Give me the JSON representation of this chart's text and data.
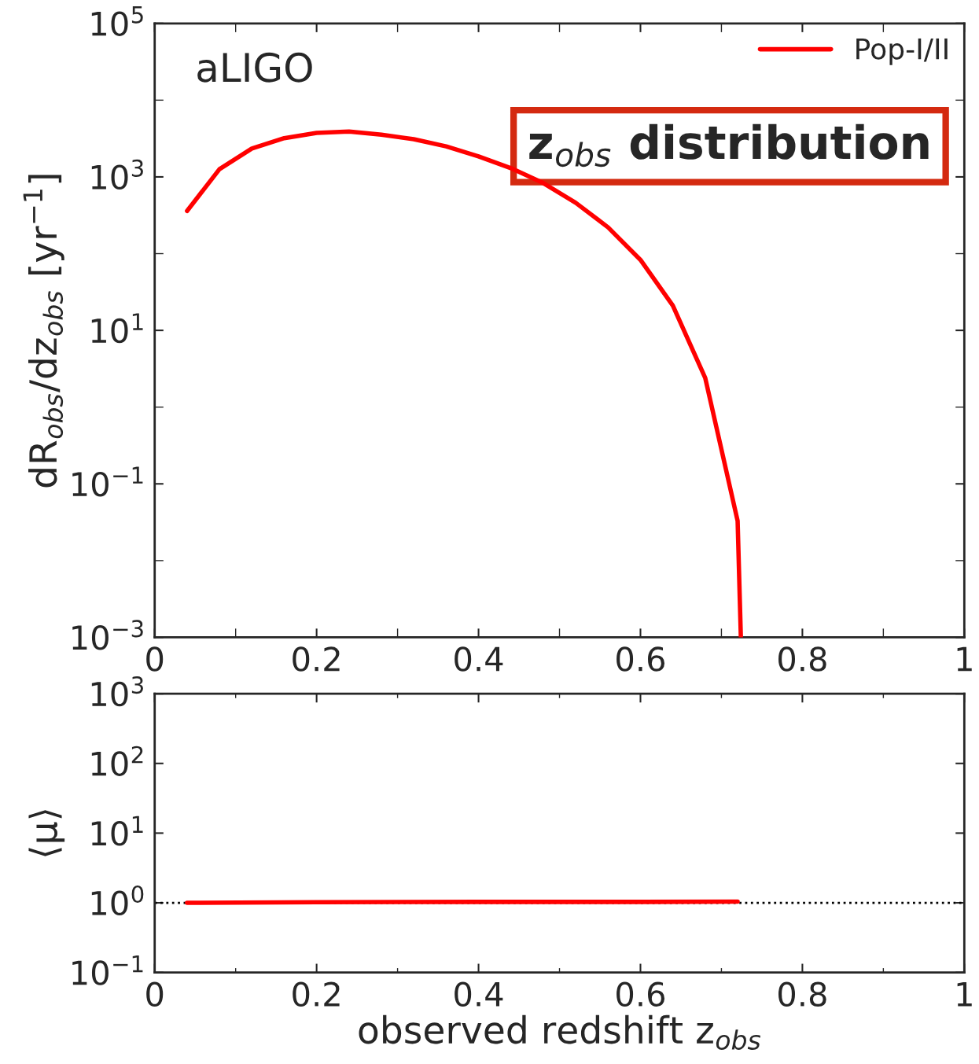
{
  "chart_data": [
    {
      "type": "line",
      "ylabel": "dR$_{obs}$/dz$_{obs}$ [yr$^{−1}$]",
      "annotations": [
        "aLIGO",
        "z$_{obs}$ distribution"
      ],
      "x": [
        0.04,
        0.08,
        0.12,
        0.16,
        0.2,
        0.24,
        0.28,
        0.32,
        0.36,
        0.4,
        0.44,
        0.48,
        0.52,
        0.56,
        0.6,
        0.64,
        0.68,
        0.72,
        0.724
      ],
      "series": [
        {
          "name": "Pop-I/II",
          "color": "#ff0000",
          "values": [
            360,
            1260,
            2340,
            3200,
            3750,
            3900,
            3550,
            3100,
            2500,
            1850,
            1300,
            830,
            460,
            220,
            83,
            21,
            2.4,
            0.033,
            0.001
          ]
        }
      ],
      "log": "y",
      "xlim": [
        0,
        1
      ],
      "ylim": [
        0.001,
        100000
      ],
      "xticks": [
        0,
        0.2,
        0.4,
        0.6,
        0.8,
        1
      ],
      "yticks": [
        {
          "value": 0.001,
          "label": "10$^{−3}$"
        },
        {
          "value": 0.1,
          "label": "10$^{−1}$"
        },
        {
          "value": 10,
          "label": "10$^{1}$"
        },
        {
          "value": 1000,
          "label": "10$^{3}$"
        },
        {
          "value": 100000,
          "label": "10$^{5}$"
        }
      ],
      "legend": "top right",
      "grid": false
    },
    {
      "type": "line",
      "xlabel": "observed redshift z$_{obs}$",
      "ylabel": "⟨μ⟩",
      "x": [
        0.04,
        0.2,
        0.4,
        0.6,
        0.72
      ],
      "series": [
        {
          "color": "#ff0000",
          "values": [
            1.0,
            1.02,
            1.03,
            1.03,
            1.04
          ]
        }
      ],
      "log": "y",
      "xlim": [
        0,
        1
      ],
      "ylim": [
        0.1,
        1000
      ],
      "xticks": [
        0,
        0.2,
        0.4,
        0.6,
        0.8,
        1
      ],
      "yticks": [
        {
          "value": 0.1,
          "label": "10$^{−1}$"
        },
        {
          "value": 1,
          "label": "10$^{0}$"
        },
        {
          "value": 10,
          "label": "10$^{1}$"
        },
        {
          "value": 100,
          "label": "10$^{2}$"
        },
        {
          "value": 1000,
          "label": "10$^{3}$"
        }
      ],
      "ref_lines": [
        {
          "axis": "y",
          "value": 1,
          "line_style": "dotted",
          "color": "#000000"
        }
      ],
      "grid": false
    }
  ]
}
